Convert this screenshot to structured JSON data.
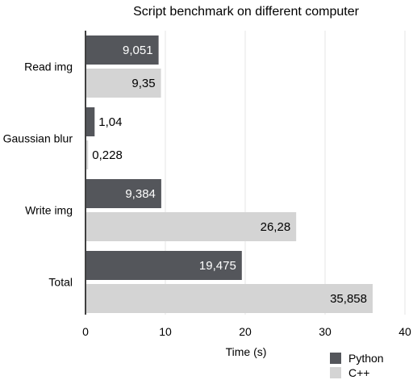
{
  "chart_data": {
    "type": "bar",
    "orientation": "horizontal",
    "title": "Script benchmark on different computer",
    "xlabel": "Time (s)",
    "ylabel": "",
    "xlim": [
      0,
      40
    ],
    "xticks": [
      0,
      10,
      20,
      30,
      40
    ],
    "categories": [
      "Read img",
      "Gaussian blur",
      "Write img",
      "Total"
    ],
    "series": [
      {
        "name": "Python",
        "color": "#54565b",
        "values": [
          9.051,
          1.04,
          9.384,
          19.475
        ],
        "labels": [
          "9,051",
          "1,04",
          "9,384",
          "19,475"
        ]
      },
      {
        "name": "C++",
        "color": "#d4d4d4",
        "values": [
          9.35,
          0.228,
          26.28,
          35.858
        ],
        "labels": [
          "9,35",
          "0,228",
          "26,28",
          "35,858"
        ]
      }
    ],
    "legend_position": "bottom-right",
    "grid": "vertical"
  }
}
